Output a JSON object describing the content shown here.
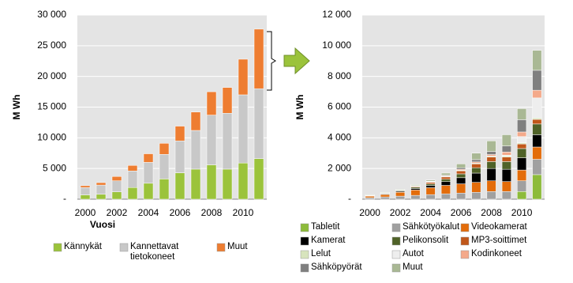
{
  "chart_data": [
    {
      "type": "bar",
      "stacked": true,
      "x_label": "Vuosi",
      "y_label": "M Wh",
      "categories": [
        "2000",
        null,
        "2002",
        null,
        "2004",
        null,
        "2006",
        null,
        "2008",
        null,
        "2010",
        null
      ],
      "ylim": [
        0,
        30000
      ],
      "yticks": [
        {
          "value": 0,
          "label": "-"
        },
        {
          "value": 5000,
          "label": "5 000"
        },
        {
          "value": 10000,
          "label": "10 000"
        },
        {
          "value": 15000,
          "label": "15 000"
        },
        {
          "value": 20000,
          "label": "20 000"
        },
        {
          "value": 25000,
          "label": "25 000"
        },
        {
          "value": 30000,
          "label": "30 000"
        }
      ],
      "grid": true,
      "series": [
        {
          "name": "Kännykät",
          "color": "#9bc33b",
          "values": [
            700,
            800,
            1200,
            1900,
            2600,
            3300,
            4300,
            4900,
            5600,
            4900,
            5900,
            6600
          ]
        },
        {
          "name": "Kannettavat tietokoneet",
          "color": "#c8c8c8",
          "values": [
            1200,
            1500,
            1800,
            2700,
            3400,
            4000,
            5200,
            6300,
            8100,
            9100,
            11100,
            11400
          ]
        },
        {
          "name": "Muut",
          "color": "#ee7d31",
          "values": [
            300,
            400,
            700,
            900,
            1400,
            1800,
            2400,
            3000,
            3800,
            4200,
            5800,
            9700
          ]
        }
      ]
    },
    {
      "type": "bar",
      "stacked": true,
      "y_label": "M Wh",
      "categories": [
        "2000",
        null,
        "2002",
        null,
        "2004",
        null,
        "2006",
        null,
        "2008",
        null,
        "2010",
        null
      ],
      "ylim": [
        0,
        12000
      ],
      "yticks": [
        {
          "value": 0,
          "label": "-"
        },
        {
          "value": 2000,
          "label": "2 000"
        },
        {
          "value": 4000,
          "label": "4 000"
        },
        {
          "value": 6000,
          "label": "6 000"
        },
        {
          "value": 8000,
          "label": "8 000"
        },
        {
          "value": 10000,
          "label": "10 000"
        },
        {
          "value": 12000,
          "label": "12 000"
        }
      ],
      "grid": true,
      "series": [
        {
          "name": "Tabletit",
          "color": "#8dbb3a",
          "values": [
            0,
            0,
            0,
            0,
            0,
            0,
            0,
            0,
            0,
            0,
            500,
            1600
          ]
        },
        {
          "name": "Sähkötyökalut",
          "color": "#a0a0a0",
          "values": [
            100,
            150,
            200,
            250,
            300,
            350,
            400,
            450,
            500,
            500,
            700,
            1000
          ]
        },
        {
          "name": "Videokamerat",
          "color": "#e36c0a",
          "values": [
            100,
            150,
            250,
            350,
            450,
            550,
            600,
            650,
            700,
            650,
            700,
            800
          ]
        },
        {
          "name": "Kamerat",
          "color": "#000000",
          "values": [
            20,
            40,
            60,
            100,
            150,
            250,
            400,
            600,
            800,
            800,
            800,
            800
          ]
        },
        {
          "name": "Pelikonsolit",
          "color": "#4f6228",
          "values": [
            20,
            30,
            50,
            80,
            100,
            150,
            250,
            350,
            450,
            500,
            600,
            700
          ]
        },
        {
          "name": "MP3-soittimet",
          "color": "#c0571a",
          "values": [
            0,
            10,
            20,
            50,
            100,
            150,
            200,
            250,
            300,
            300,
            300,
            300
          ]
        },
        {
          "name": "Lelut",
          "color": "#d7e4bd",
          "values": [
            10,
            10,
            10,
            20,
            20,
            30,
            40,
            50,
            60,
            70,
            80,
            100
          ]
        },
        {
          "name": "Autot",
          "color": "#eeeeee",
          "values": [
            0,
            0,
            0,
            0,
            0,
            0,
            0,
            0,
            0,
            50,
            400,
            1300
          ]
        },
        {
          "name": "Kodinkoneet",
          "color": "#f4a98a",
          "values": [
            10,
            10,
            10,
            20,
            30,
            40,
            60,
            80,
            100,
            200,
            300,
            500
          ]
        },
        {
          "name": "Sähköpyörät",
          "color": "#7f7f7f",
          "values": [
            0,
            10,
            10,
            20,
            30,
            50,
            100,
            150,
            200,
            400,
            800,
            1300
          ]
        },
        {
          "name": "Muut",
          "color": "#a9b894",
          "values": [
            40,
            40,
            40,
            60,
            70,
            130,
            250,
            420,
            690,
            730,
            720,
            1300
          ]
        }
      ]
    }
  ]
}
